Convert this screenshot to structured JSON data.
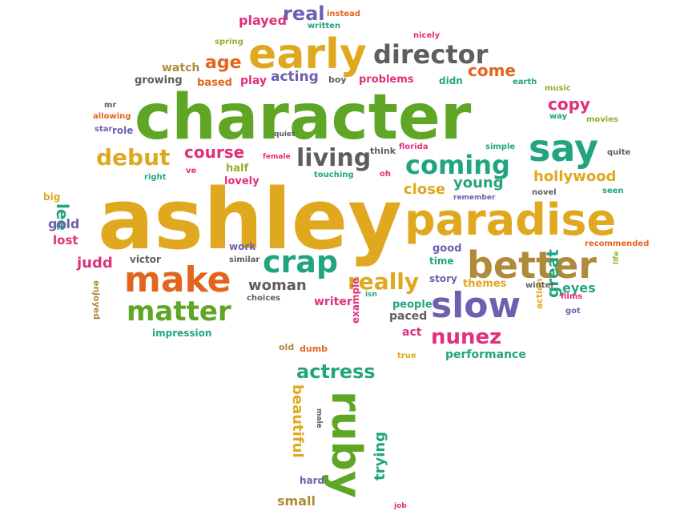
{
  "colors": {
    "gold": "#E0A81E",
    "green": "#5FA526",
    "teal": "#21A57F",
    "pink": "#E0307B",
    "purple": "#6E60B0",
    "orange": "#E3651D",
    "brown": "#B08A3B",
    "gray": "#5E5E5E",
    "olive": "#8FB12B"
  },
  "words": [
    {
      "text": "ashley",
      "color": "gold"
    },
    {
      "text": "character",
      "color": "green"
    },
    {
      "text": "paradise",
      "color": "gold"
    },
    {
      "text": "early",
      "color": "gold"
    },
    {
      "text": "better",
      "color": "brown"
    },
    {
      "text": "say",
      "color": "teal"
    },
    {
      "text": "director",
      "color": "gray"
    },
    {
      "text": "coming",
      "color": "teal"
    },
    {
      "text": "make",
      "color": "orange"
    },
    {
      "text": "slow",
      "color": "purple"
    },
    {
      "text": "matter",
      "color": "green"
    },
    {
      "text": "crap",
      "color": "teal"
    },
    {
      "text": "ruby",
      "color": "green"
    },
    {
      "text": "debut",
      "color": "gold"
    },
    {
      "text": "living",
      "color": "gray"
    },
    {
      "text": "course",
      "color": "pink"
    },
    {
      "text": "really",
      "color": "gold"
    },
    {
      "text": "nunez",
      "color": "pink"
    },
    {
      "text": "actress",
      "color": "teal"
    },
    {
      "text": "age",
      "color": "orange"
    },
    {
      "text": "real",
      "color": "purple"
    },
    {
      "text": "come",
      "color": "orange"
    },
    {
      "text": "copy",
      "color": "pink"
    },
    {
      "text": "hollywood",
      "color": "gold"
    },
    {
      "text": "close",
      "color": "gold"
    },
    {
      "text": "young",
      "color": "teal"
    },
    {
      "text": "woman",
      "color": "gray"
    },
    {
      "text": "great",
      "color": "teal"
    },
    {
      "text": "lee",
      "color": "teal"
    },
    {
      "text": "gold",
      "color": "purple"
    },
    {
      "text": "beautiful",
      "color": "gold"
    },
    {
      "text": "trying",
      "color": "teal"
    },
    {
      "text": "small",
      "color": "brown"
    },
    {
      "text": "judd",
      "color": "pink"
    },
    {
      "text": "acting",
      "color": "purple"
    },
    {
      "text": "played",
      "color": "pink"
    },
    {
      "text": "watch",
      "color": "brown"
    },
    {
      "text": "based",
      "color": "orange"
    },
    {
      "text": "growing",
      "color": "gray"
    },
    {
      "text": "play",
      "color": "pink"
    },
    {
      "text": "problems",
      "color": "pink"
    },
    {
      "text": "lost",
      "color": "pink"
    },
    {
      "text": "impression",
      "color": "teal"
    },
    {
      "text": "performance",
      "color": "teal"
    },
    {
      "text": "eyes",
      "color": "teal"
    },
    {
      "text": "paced",
      "color": "gray"
    },
    {
      "text": "people",
      "color": "teal"
    },
    {
      "text": "act",
      "color": "pink"
    },
    {
      "text": "writer",
      "color": "pink"
    },
    {
      "text": "story",
      "color": "purple"
    },
    {
      "text": "time",
      "color": "teal"
    },
    {
      "text": "good",
      "color": "purple"
    },
    {
      "text": "themes",
      "color": "gold"
    },
    {
      "text": "lovely",
      "color": "pink"
    },
    {
      "text": "half",
      "color": "olive"
    },
    {
      "text": "victor",
      "color": "gray"
    },
    {
      "text": "work",
      "color": "purple"
    },
    {
      "text": "example",
      "color": "pink"
    },
    {
      "text": "hard",
      "color": "purple"
    },
    {
      "text": "boy",
      "color": "gray"
    },
    {
      "text": "didn",
      "color": "teal"
    },
    {
      "text": "instead",
      "color": "orange"
    },
    {
      "text": "written",
      "color": "teal"
    },
    {
      "text": "nicely",
      "color": "pink"
    },
    {
      "text": "spring",
      "color": "olive"
    },
    {
      "text": "music",
      "color": "olive"
    },
    {
      "text": "earth",
      "color": "teal"
    },
    {
      "text": "way",
      "color": "teal"
    },
    {
      "text": "movies",
      "color": "olive"
    },
    {
      "text": "simple",
      "color": "teal"
    },
    {
      "text": "quite",
      "color": "gray"
    },
    {
      "text": "seen",
      "color": "teal"
    },
    {
      "text": "novel",
      "color": "gray"
    },
    {
      "text": "remember",
      "color": "purple"
    },
    {
      "text": "florida",
      "color": "pink"
    },
    {
      "text": "think",
      "color": "gray"
    },
    {
      "text": "oh",
      "color": "pink"
    },
    {
      "text": "touching",
      "color": "teal"
    },
    {
      "text": "female",
      "color": "pink"
    },
    {
      "text": "quiet",
      "color": "gray"
    },
    {
      "text": "ve",
      "color": "pink"
    },
    {
      "text": "right",
      "color": "teal"
    },
    {
      "text": "big",
      "color": "gold"
    },
    {
      "text": "mr",
      "color": "gray"
    },
    {
      "text": "allowing",
      "color": "orange"
    },
    {
      "text": "star",
      "color": "purple"
    },
    {
      "text": "role",
      "color": "purple"
    },
    {
      "text": "similar",
      "color": "gray"
    },
    {
      "text": "choices",
      "color": "gray"
    },
    {
      "text": "enjoyed",
      "color": "brown"
    },
    {
      "text": "old",
      "color": "brown"
    },
    {
      "text": "dumb",
      "color": "orange"
    },
    {
      "text": "isn",
      "color": "teal"
    },
    {
      "text": "true",
      "color": "gold"
    },
    {
      "text": "male",
      "color": "gray"
    },
    {
      "text": "job",
      "color": "pink"
    },
    {
      "text": "action",
      "color": "gold"
    },
    {
      "text": "got",
      "color": "purple"
    },
    {
      "text": "films",
      "color": "pink"
    },
    {
      "text": "winter",
      "color": "gray"
    },
    {
      "text": "life",
      "color": "olive"
    },
    {
      "text": "recommended",
      "color": "orange"
    }
  ]
}
